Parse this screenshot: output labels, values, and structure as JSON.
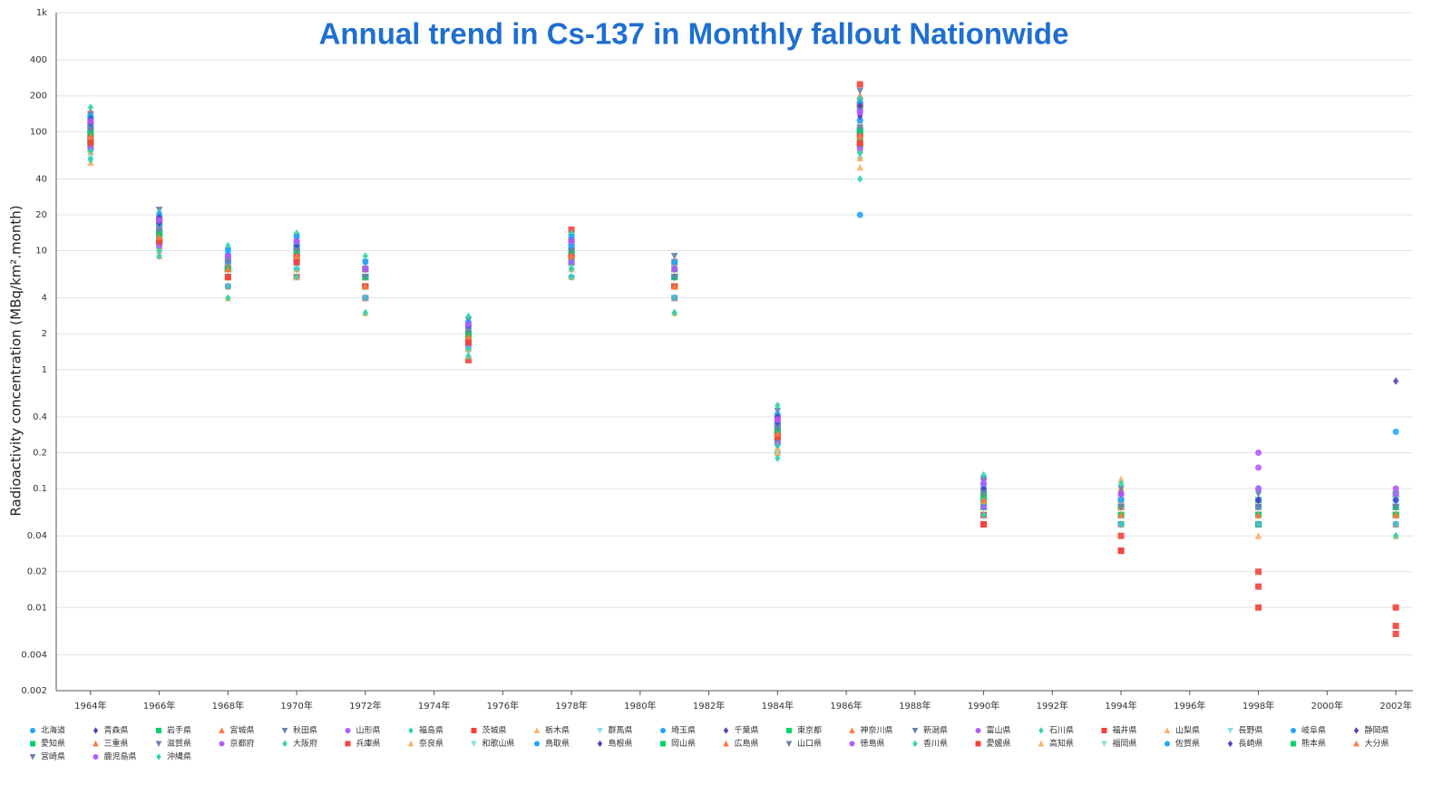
{
  "chart_data": {
    "type": "scatter",
    "title": "Annual trend in Cs-137 in Monthly fallout Nationwide",
    "y_label": "Radioactivity concentration (MBq/km².month)",
    "log_y": true,
    "grid": true,
    "legend": "bottom",
    "markers": [
      "circle",
      "diamond",
      "square",
      "triangle-up",
      "triangle-down"
    ],
    "xlim": [
      1963,
      2002.5
    ],
    "xticks": [
      {
        "value": 1964,
        "label": "1964年"
      },
      {
        "value": 1966,
        "label": "1966年"
      },
      {
        "value": 1968,
        "label": "1968年"
      },
      {
        "value": 1970,
        "label": "1970年"
      },
      {
        "value": 1972,
        "label": "1972年"
      },
      {
        "value": 1974,
        "label": "1974年"
      },
      {
        "value": 1976,
        "label": "1976年"
      },
      {
        "value": 1978,
        "label": "1978年"
      },
      {
        "value": 1980,
        "label": "1980年"
      },
      {
        "value": 1982,
        "label": "1982年"
      },
      {
        "value": 1984,
        "label": "1984年"
      },
      {
        "value": 1986,
        "label": "1986年"
      },
      {
        "value": 1988,
        "label": "1988年"
      },
      {
        "value": 1990,
        "label": "1990年"
      },
      {
        "value": 1992,
        "label": "1992年"
      },
      {
        "value": 1994,
        "label": "1994年"
      },
      {
        "value": 1996,
        "label": "1996年"
      },
      {
        "value": 1998,
        "label": "1998年"
      },
      {
        "value": 2000,
        "label": "2000年"
      },
      {
        "value": 2002,
        "label": "2002年"
      }
    ],
    "ylim": [
      0.002,
      1000
    ],
    "yticks": [
      0.002,
      0.004,
      0.01,
      0.02,
      0.04,
      0.1,
      0.2,
      0.4,
      1,
      2,
      4,
      10,
      20,
      40,
      100,
      200,
      400,
      {
        "value": 1000,
        "label": "1k"
      }
    ],
    "x": [
      1964,
      1966,
      1968,
      1970,
      1972,
      1975,
      1978,
      1981,
      1984,
      1986.4,
      1990,
      1994,
      1998,
      2002
    ],
    "series": [
      {
        "name": "北海道",
        "color": "#1ea7ff",
        "values": [
          80,
          15,
          5,
          7,
          4,
          1.5,
          6,
          4,
          0.2,
          20,
          0.1,
          0.07,
          0.1,
          0.3
        ]
      },
      {
        "name": "青森県",
        "color": "#5a3fbf",
        "values": [
          120,
          10,
          8,
          9,
          6,
          2.5,
          8,
          6,
          0.4,
          120,
          0.09,
          0.05,
          0.08,
          0.8
        ]
      },
      {
        "name": "岩手県",
        "color": "#00d26a",
        "values": [
          90,
          14,
          7,
          10,
          5,
          2,
          12,
          4,
          0.3,
          100,
          0.07,
          0.06,
          0.05,
          0.06
        ]
      },
      {
        "name": "宮城県",
        "color": "#ff7a3d",
        "values": [
          150,
          20,
          9,
          12,
          6,
          1.5,
          9,
          7,
          0.4,
          200,
          0.08,
          0.1,
          0.07,
          0.05
        ]
      },
      {
        "name": "秋田県",
        "color": "#6a7fb0",
        "values": [
          100,
          12,
          6,
          11,
          5,
          2,
          10,
          5,
          0.3,
          180,
          0.1,
          0.08,
          0.06,
          0.07
        ]
      },
      {
        "name": "山形県",
        "color": "#b45cff",
        "values": [
          70,
          16,
          8,
          9,
          7,
          1.8,
          11,
          6,
          0.25,
          90,
          0.12,
          0.09,
          0.15,
          0.08
        ]
      },
      {
        "name": "福島県",
        "color": "#2fd3b0",
        "values": [
          60,
          9,
          5,
          8,
          4,
          2.2,
          7,
          3,
          0.2,
          60,
          0.06,
          0.05,
          0.06,
          0.04
        ]
      },
      {
        "name": "茨城県",
        "color": "#f4413d",
        "values": [
          110,
          18,
          7,
          6,
          4,
          1.2,
          15,
          8,
          0.4,
          250,
          0.05,
          0.03,
          0.01,
          0.007
        ]
      },
      {
        "name": "栃木県",
        "color": "#f7b26a",
        "values": [
          85,
          13,
          6,
          7,
          5,
          1.6,
          9,
          5,
          0.3,
          130,
          0.09,
          0.12,
          0.07,
          0.1
        ]
      },
      {
        "name": "群馬県",
        "color": "#8de0e0",
        "values": [
          65,
          11,
          5,
          8,
          4,
          1.4,
          8,
          4,
          0.2,
          70,
          0.07,
          0.05,
          0.05,
          0.05
        ]
      },
      {
        "name": "埼玉県",
        "color": "#1ea7ff",
        "values": [
          95,
          12,
          7,
          9,
          6,
          1.8,
          10,
          5,
          0.3,
          110,
          0.08,
          0.06,
          0.07,
          0.06
        ]
      },
      {
        "name": "千葉県",
        "color": "#5a3fbf",
        "values": [
          75,
          10,
          6,
          8,
          5,
          2.1,
          7,
          6,
          0.35,
          140,
          0.09,
          0.07,
          0.06,
          0.05
        ]
      },
      {
        "name": "東京都",
        "color": "#00d26a",
        "values": [
          130,
          17,
          9,
          11,
          7,
          1.7,
          12,
          7,
          0.3,
          160,
          0.07,
          0.05,
          0.08,
          0.09
        ]
      },
      {
        "name": "神奈川県",
        "color": "#ff7a3d",
        "values": [
          105,
          15,
          8,
          10,
          6,
          2.4,
          9,
          5,
          0.25,
          80,
          0.11,
          0.06,
          0.05,
          0.07
        ]
      },
      {
        "name": "新潟県",
        "color": "#6a7fb0",
        "values": [
          140,
          22,
          10,
          13,
          8,
          2.6,
          13,
          9,
          0.45,
          220,
          0.12,
          0.1,
          0.09,
          0.08
        ]
      },
      {
        "name": "富山県",
        "color": "#b45cff",
        "values": [
          125,
          19,
          9,
          12,
          7,
          2.3,
          11,
          7,
          0.4,
          150,
          0.1,
          0.09,
          0.2,
          0.1
        ]
      },
      {
        "name": "石川県",
        "color": "#2fd3b0",
        "values": [
          160,
          21,
          11,
          14,
          9,
          2.8,
          14,
          8,
          0.5,
          190,
          0.13,
          0.11,
          0.1,
          0.09
        ]
      },
      {
        "name": "福井県",
        "color": "#f4413d",
        "values": [
          115,
          18,
          8,
          10,
          7,
          2,
          12,
          6,
          0.35,
          170,
          0.09,
          0.08,
          0.07,
          0.06
        ]
      },
      {
        "name": "山梨県",
        "color": "#f7b26a",
        "values": [
          55,
          9,
          4,
          6,
          3,
          1.3,
          6,
          3,
          0.2,
          50,
          0.06,
          0.05,
          0.04,
          0.04
        ]
      },
      {
        "name": "長野県",
        "color": "#8de0e0",
        "values": [
          62,
          10,
          5,
          7,
          4,
          1.5,
          7,
          4,
          0.22,
          65,
          0.07,
          0.06,
          0.05,
          0.05
        ]
      },
      {
        "name": "岐阜県",
        "color": "#1ea7ff",
        "values": [
          88,
          13,
          6,
          9,
          5,
          1.9,
          9,
          5,
          0.3,
          95,
          0.08,
          0.06,
          0.06,
          0.07
        ]
      },
      {
        "name": "静岡県",
        "color": "#5a3fbf",
        "values": [
          72,
          11,
          6,
          8,
          5,
          1.6,
          8,
          4,
          0.25,
          75,
          0.07,
          0.05,
          0.06,
          0.06
        ]
      },
      {
        "name": "愛知県",
        "color": "#00d26a",
        "values": [
          82,
          12,
          7,
          9,
          5,
          1.8,
          9,
          5,
          0.28,
          85,
          0.08,
          0.06,
          0.05,
          0.06
        ]
      },
      {
        "name": "三重県",
        "color": "#ff7a3d",
        "values": [
          78,
          11,
          6,
          8,
          4,
          1.7,
          8,
          4,
          0.26,
          70,
          0.07,
          0.06,
          0.05,
          0.05
        ]
      },
      {
        "name": "滋賀県",
        "color": "#6a7fb0",
        "values": [
          92,
          14,
          7,
          10,
          6,
          2,
          10,
          6,
          0.3,
          100,
          0.09,
          0.07,
          0.06,
          0.06
        ]
      },
      {
        "name": "京都府",
        "color": "#b45cff",
        "values": [
          98,
          15,
          7,
          10,
          6,
          2.1,
          10,
          6,
          0.32,
          105,
          0.1,
          0.07,
          0.08,
          0.07
        ]
      },
      {
        "name": "大阪府",
        "color": "#2fd3b0",
        "values": [
          86,
          13,
          6,
          9,
          5,
          1.9,
          9,
          5,
          0.29,
          90,
          0.08,
          0.06,
          0.06,
          0.06
        ]
      },
      {
        "name": "兵庫県",
        "color": "#f4413d",
        "values": [
          94,
          14,
          7,
          9,
          6,
          2,
          10,
          5,
          0.3,
          95,
          0.06,
          0.04,
          0.02,
          0.01
        ]
      },
      {
        "name": "奈良県",
        "color": "#f7b26a",
        "values": [
          68,
          10,
          5,
          7,
          4,
          1.5,
          7,
          4,
          0.22,
          60,
          0.07,
          0.05,
          0.05,
          0.05
        ]
      },
      {
        "name": "和歌山県",
        "color": "#8de0e0",
        "values": [
          74,
          11,
          6,
          8,
          5,
          1.6,
          8,
          4,
          0.24,
          68,
          0.07,
          0.06,
          0.05,
          0.05
        ]
      },
      {
        "name": "鳥取県",
        "color": "#1ea7ff",
        "values": [
          135,
          20,
          10,
          13,
          8,
          2.5,
          13,
          8,
          0.42,
          175,
          0.11,
          0.09,
          0.08,
          0.08
        ]
      },
      {
        "name": "島根県",
        "color": "#5a3fbf",
        "values": [
          128,
          19,
          9,
          12,
          7,
          2.4,
          12,
          7,
          0.4,
          165,
          0.1,
          0.09,
          0.08,
          0.07
        ]
      },
      {
        "name": "岡山県",
        "color": "#00d26a",
        "values": [
          79,
          12,
          6,
          8,
          5,
          1.7,
          8,
          5,
          0.26,
          78,
          0.07,
          0.06,
          0.05,
          0.06
        ]
      },
      {
        "name": "広島県",
        "color": "#ff7a3d",
        "values": [
          84,
          12,
          6,
          9,
          5,
          1.8,
          9,
          5,
          0.28,
          82,
          0.08,
          0.06,
          0.06,
          0.06
        ]
      },
      {
        "name": "山口県",
        "color": "#6a7fb0",
        "values": [
          96,
          14,
          7,
          10,
          6,
          2,
          10,
          6,
          0.31,
          98,
          0.09,
          0.07,
          0.06,
          0.07
        ]
      },
      {
        "name": "徳島県",
        "color": "#b45cff",
        "values": [
          73,
          11,
          5,
          8,
          4,
          1.6,
          8,
          4,
          0.24,
          72,
          0.07,
          0.05,
          0.05,
          0.05
        ]
      },
      {
        "name": "香川県",
        "color": "#2fd3b0",
        "values": [
          69,
          10,
          5,
          7,
          4,
          1.5,
          7,
          4,
          0.23,
          66,
          0.06,
          0.05,
          0.05,
          0.05
        ]
      },
      {
        "name": "愛媛県",
        "color": "#f4413d",
        "values": [
          81,
          12,
          6,
          8,
          5,
          1.7,
          9,
          5,
          0.27,
          80,
          0.05,
          0.03,
          0.015,
          0.006
        ]
      },
      {
        "name": "高知県",
        "color": "#f7b26a",
        "values": [
          102,
          15,
          8,
          10,
          6,
          2.2,
          11,
          6,
          0.33,
          115,
          0.09,
          0.08,
          0.07,
          0.07
        ]
      },
      {
        "name": "福岡県",
        "color": "#8de0e0",
        "values": [
          108,
          16,
          8,
          11,
          6,
          2.2,
          11,
          6,
          0.34,
          120,
          0.1,
          0.08,
          0.07,
          0.08
        ]
      },
      {
        "name": "佐賀県",
        "color": "#1ea7ff",
        "values": [
          112,
          17,
          8,
          11,
          7,
          2.3,
          11,
          6,
          0.35,
          125,
          0.1,
          0.08,
          0.07,
          0.08
        ]
      },
      {
        "name": "長崎県",
        "color": "#5a3fbf",
        "values": [
          118,
          17,
          9,
          11,
          7,
          2.3,
          12,
          7,
          0.36,
          135,
          0.1,
          0.09,
          0.08,
          0.08
        ]
      },
      {
        "name": "熊本県",
        "color": "#00d26a",
        "values": [
          99,
          14,
          7,
          10,
          6,
          2,
          10,
          6,
          0.31,
          102,
          0.09,
          0.07,
          0.06,
          0.07
        ]
      },
      {
        "name": "大分県",
        "color": "#ff7a3d",
        "values": [
          91,
          13,
          7,
          9,
          5,
          1.9,
          9,
          5,
          0.29,
          92,
          0.08,
          0.07,
          0.06,
          0.06
        ]
      },
      {
        "name": "宮崎県",
        "color": "#6a7fb0",
        "values": [
          104,
          15,
          8,
          10,
          6,
          2.1,
          10,
          6,
          0.32,
          108,
          0.09,
          0.07,
          0.07,
          0.07
        ]
      },
      {
        "name": "鹿児島県",
        "color": "#b45cff",
        "values": [
          122,
          18,
          9,
          12,
          7,
          2.4,
          12,
          7,
          0.38,
          145,
          0.11,
          0.09,
          0.1,
          0.09
        ]
      },
      {
        "name": "沖縄県",
        "color": "#2fd3b0",
        "values": [
          58,
          9,
          4,
          6,
          3,
          1.3,
          6,
          3,
          0.18,
          40,
          0.06,
          0.05,
          0.05,
          0.04
        ]
      }
    ]
  }
}
